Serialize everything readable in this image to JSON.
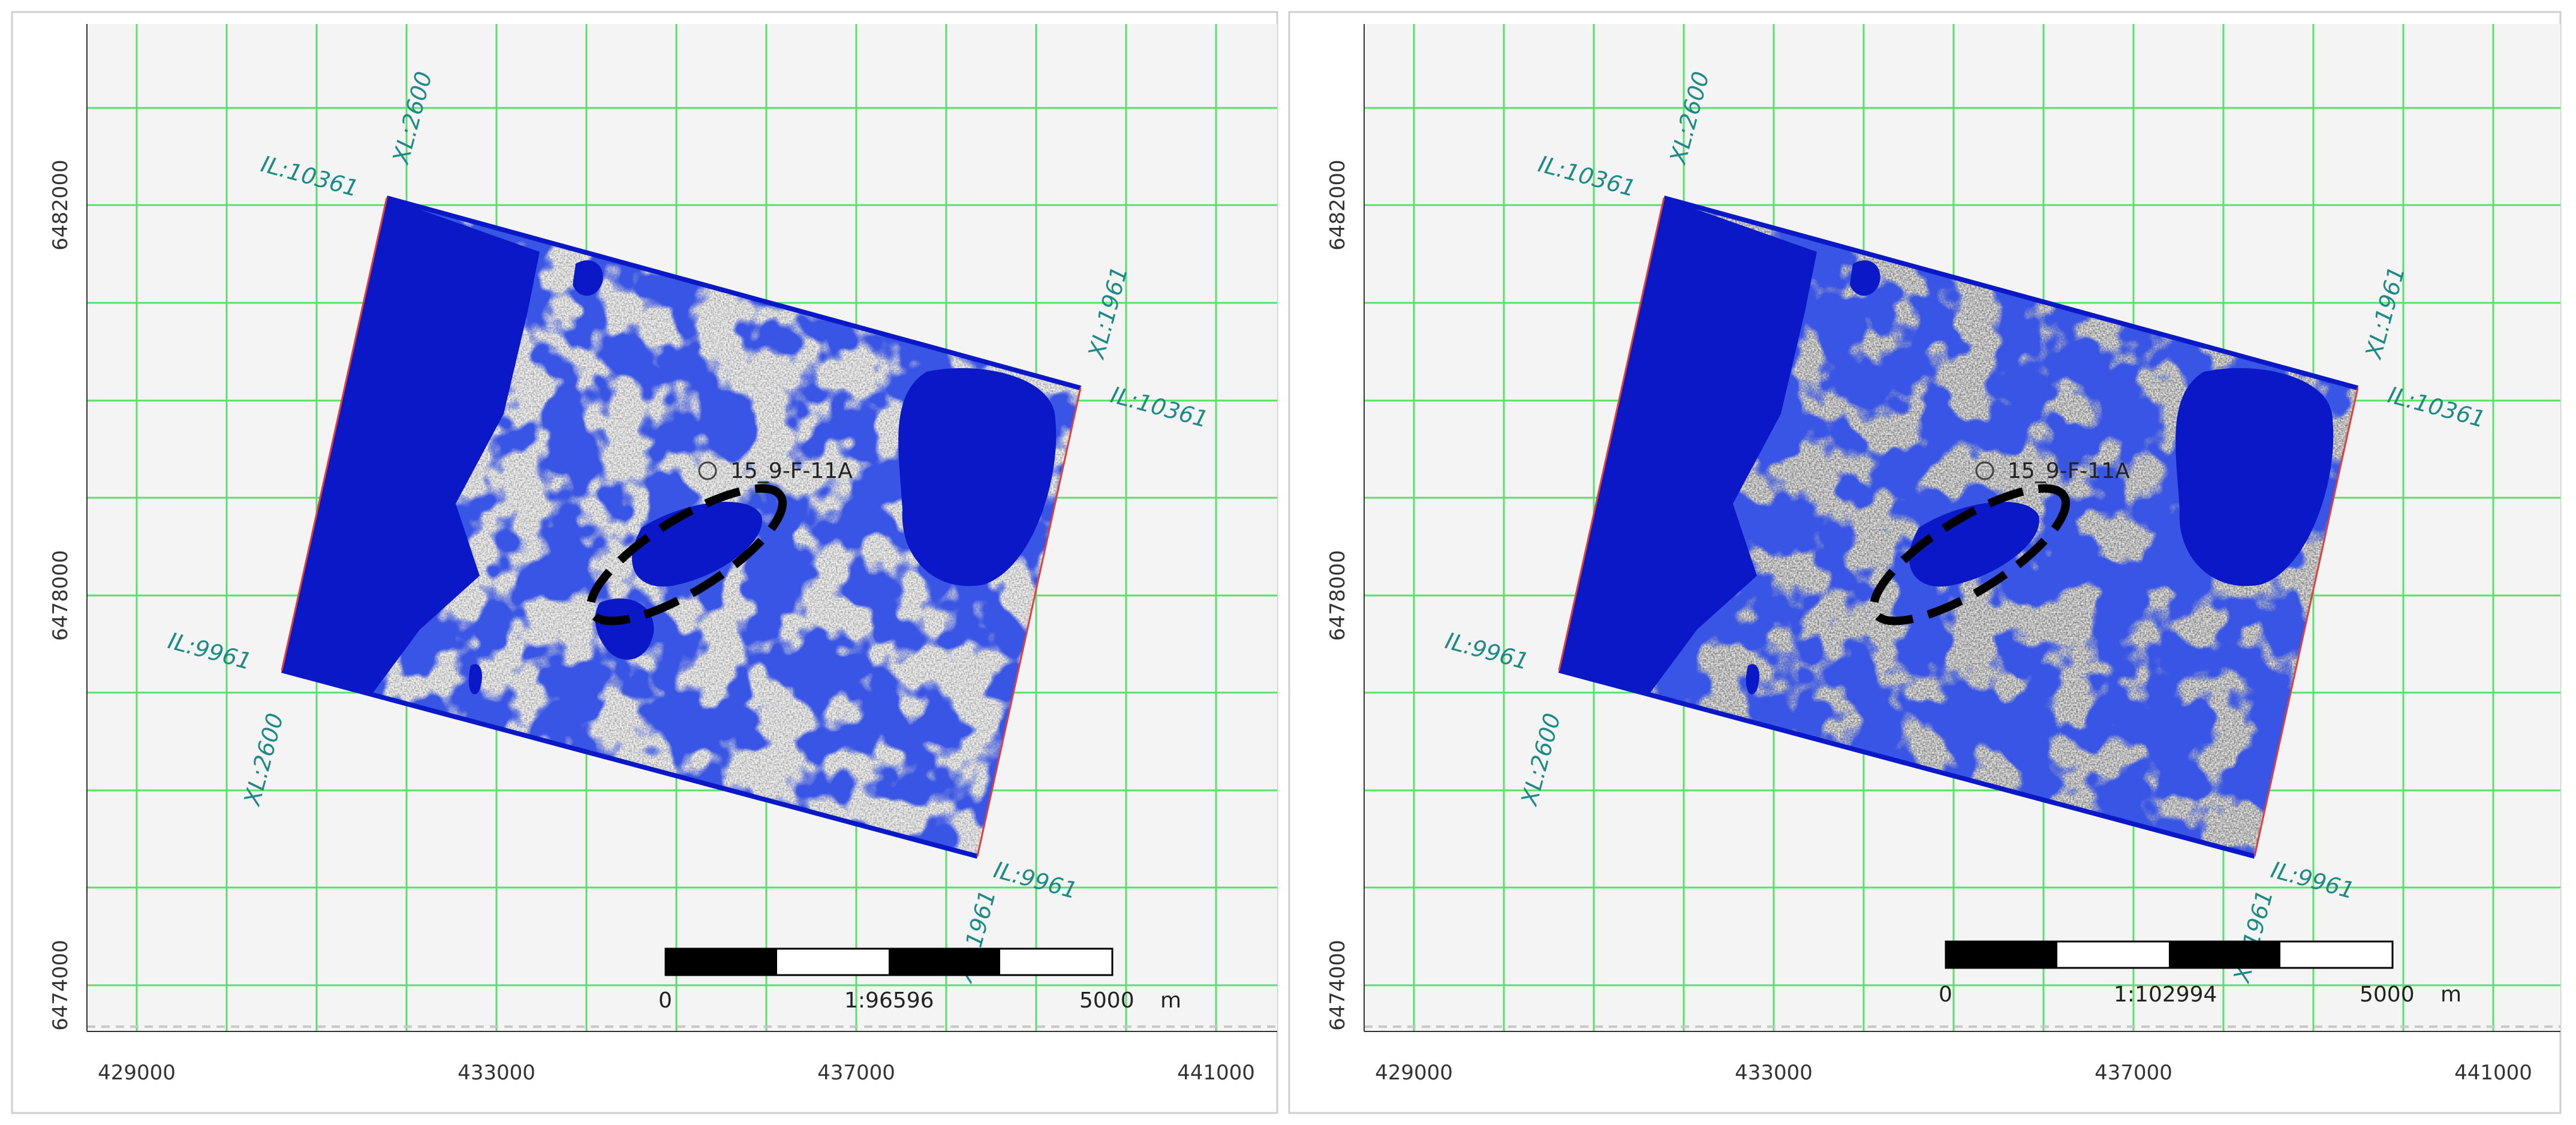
{
  "colors": {
    "grid": "#59e06a",
    "survey_fill": "#0a18c8",
    "survey_edge_red": "#e0403a",
    "calibration_text": "#1d8a86",
    "background": "#f4f4f4"
  },
  "panels": [
    {
      "x_ticks": [
        "429000",
        "433000",
        "437000",
        "441000"
      ],
      "y_ticks": [
        "6482000",
        "6478000",
        "6474000"
      ],
      "survey_labels": {
        "top_il": "IL:10361",
        "top_xl": "XL:2600",
        "right_xl": "XL:1961",
        "right_il": "IL:10361",
        "left_il": "IL:9961",
        "left_xl": "XL:2600",
        "bottom_il": "IL:9961",
        "bottom_xl": "XL:1961"
      },
      "well_name": "15_9-F-11A",
      "scale_bar": {
        "start": "0",
        "ratio": "1:96596",
        "end": "5000",
        "unit": "m"
      }
    },
    {
      "x_ticks": [
        "429000",
        "433000",
        "437000",
        "441000"
      ],
      "y_ticks": [
        "6482000",
        "6478000",
        "6474000"
      ],
      "survey_labels": {
        "top_il": "IL:10361",
        "top_xl": "XL:2600",
        "right_xl": "XL:1961",
        "right_il": "IL:10361",
        "left_il": "IL:9961",
        "left_xl": "XL:2600",
        "bottom_il": "IL:9961",
        "bottom_xl": "XL:1961"
      },
      "well_name": "15_9-F-11A",
      "scale_bar": {
        "start": "0",
        "ratio": "1:102994",
        "end": "5000",
        "unit": "m"
      }
    }
  ]
}
